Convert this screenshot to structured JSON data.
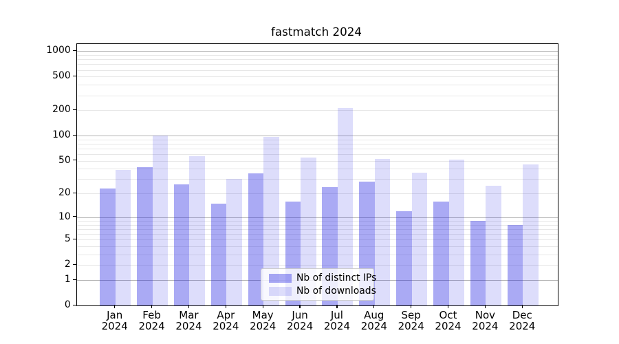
{
  "chart_data": {
    "type": "bar",
    "title": "fastmatch 2024",
    "categories": [
      "Jan",
      "Feb",
      "Mar",
      "Apr",
      "May",
      "Jun",
      "Jul",
      "Aug",
      "Sep",
      "Oct",
      "Nov",
      "Dec"
    ],
    "category_sublabel": "2024",
    "series": [
      {
        "name": "Nb of distinct IPs",
        "color": "rgba(25,25,225,0.37)",
        "values": [
          23,
          42,
          26,
          15,
          35,
          16,
          24,
          28,
          12,
          16,
          9,
          8
        ]
      },
      {
        "name": "Nb of downloads",
        "color": "rgba(25,25,225,0.15)",
        "values": [
          39,
          100,
          57,
          30,
          97,
          55,
          213,
          53,
          36,
          52,
          25,
          45
        ]
      }
    ],
    "xlabel": "",
    "ylabel": "",
    "yscale": "log1p",
    "ylim": [
      0,
      1218
    ],
    "yticks": [
      0,
      1,
      2,
      5,
      10,
      20,
      50,
      100,
      200,
      500,
      1000
    ],
    "grid": {
      "major": [
        1,
        10,
        100,
        1000
      ],
      "minor_multiples_per_decade": [
        2,
        3,
        4,
        5,
        6,
        7,
        8,
        9
      ],
      "decades": [
        1,
        10,
        100
      ]
    },
    "legend_position": "lower center",
    "colors": {
      "grid_major": "#b2b2b2",
      "grid_minor": "#e7e7e7",
      "spine": "#000000",
      "background": "#ffffff",
      "legend_edge": "#cccccc",
      "text": "#000000"
    }
  }
}
